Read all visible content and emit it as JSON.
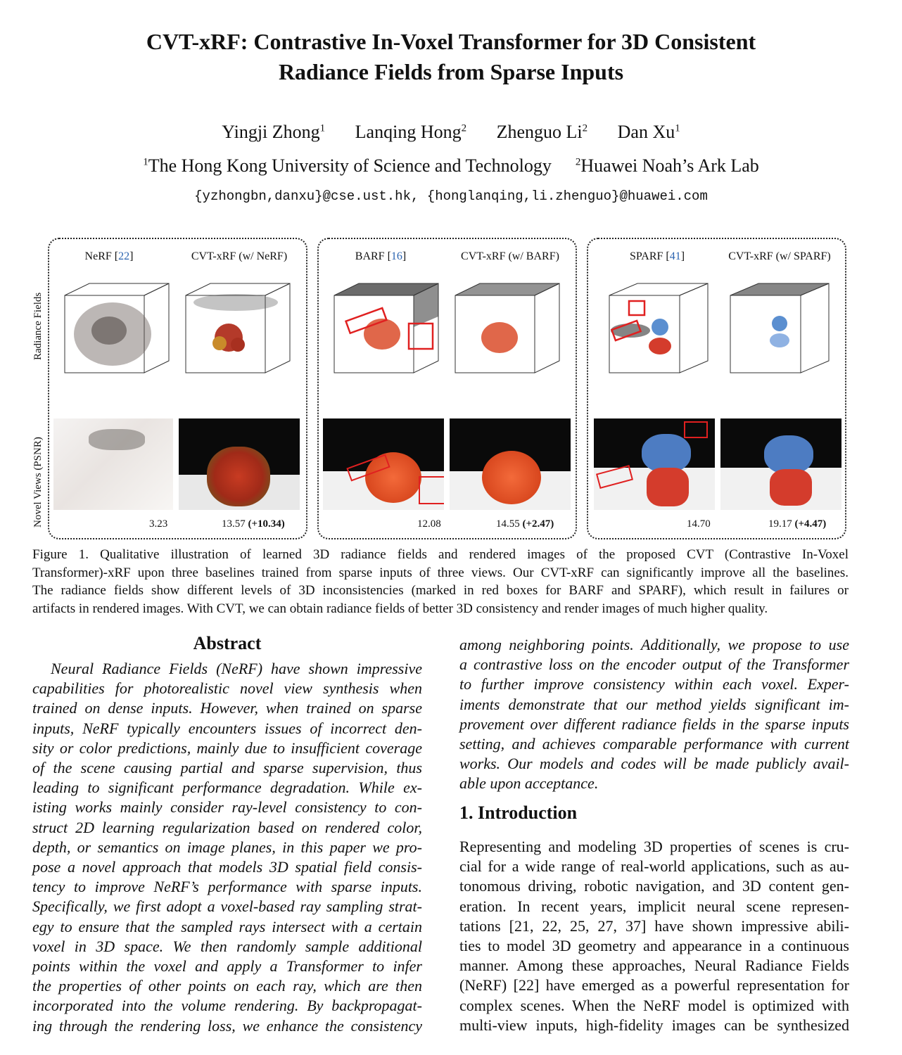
{
  "paper": {
    "title_line1": "CVT-xRF: Contrastive In-Voxel Transformer for 3D Consistent",
    "title_line2": "Radiance Fields from Sparse Inputs",
    "authors": [
      {
        "name": "Yingji Zhong",
        "aff": "1"
      },
      {
        "name": "Lanqing Hong",
        "aff": "2"
      },
      {
        "name": "Zhenguo Li",
        "aff": "2"
      },
      {
        "name": "Dan Xu",
        "aff": "1"
      }
    ],
    "affiliations": [
      {
        "num": "1",
        "name": "The Hong Kong University of Science and Technology"
      },
      {
        "num": "2",
        "name": "Huawei Noah’s Ark Lab"
      }
    ],
    "emails": "{yzhongbn,danxu}@cse.ust.hk, {honglanqing,li.zhenguo}@huawei.com"
  },
  "figure": {
    "row_labels": [
      "Radiance Fields",
      "Novel Views (PSNR)"
    ],
    "panels": [
      {
        "left_name": "NeRF",
        "left_ref": "22",
        "right_label": "CVT-xRF (w/ NeRF)",
        "left_score": "3.23",
        "right_score": "13.57",
        "gain": "(+10.34)"
      },
      {
        "left_name": "BARF",
        "left_ref": "16",
        "right_label": "CVT-xRF (w/ BARF)",
        "left_score": "12.08",
        "right_score": "14.55",
        "gain": "(+2.47)"
      },
      {
        "left_name": "SPARF",
        "left_ref": "41",
        "right_label": "CVT-xRF (w/ SPARF)",
        "left_score": "14.70",
        "right_score": "19.17",
        "gain": "(+4.47)"
      }
    ],
    "caption_lines": [
      "Figure 1.  Qualitative illustration of learned 3D radiance fields and rendered images of the proposed CVT (Contrastive In-Voxel",
      "Transformer)-xRF upon three baselines trained from sparse inputs of three views. Our CVT-xRF can significantly improve all the baselines.",
      "The radiance fields show different levels of 3D inconsistencies (marked in red boxes for BARF and SPARF), which result in failures or",
      "artifacts in rendered images. With CVT, we can obtain radiance fields of better 3D consistency and render images of much higher quality."
    ]
  },
  "abstract": {
    "heading": "Abstract",
    "left_lines": [
      "Neural Radiance Fields (NeRF) have shown impressive",
      "capabilities for photorealistic novel view synthesis when",
      "trained on dense inputs. However, when trained on sparse",
      "inputs, NeRF typically encounters issues of incorrect den-",
      "sity or color predictions, mainly due to insufficient coverage",
      "of the scene causing partial and sparse supervision, thus",
      "leading to significant performance degradation. While ex-",
      "isting works mainly consider ray-level consistency to con-",
      "struct 2D learning regularization based on rendered color,",
      "depth, or semantics on image planes, in this paper we pro-",
      "pose a novel approach that models 3D spatial field consis-",
      "tency to improve NeRF’s performance with sparse inputs.",
      "Specifically, we first adopt a voxel-based ray sampling strat-",
      "egy to ensure that the sampled rays intersect with a certain",
      "voxel in 3D space.  We then randomly sample additional",
      "points within the voxel and apply a Transformer to infer",
      "the properties of other points on each ray, which are then",
      "incorporated into the volume rendering. By backpropagat-",
      "ing through the rendering loss, we enhance the consistency"
    ],
    "right_lines": [
      "among neighboring points. Additionally, we propose to use",
      "a contrastive loss on the encoder output of the Transformer",
      "to further improve consistency within each voxel.  Exper-",
      "iments demonstrate that our method yields significant im-",
      "provement over different radiance fields in the sparse inputs",
      "setting, and achieves comparable performance with current",
      "works.  Our models and codes will be made publicly avail-",
      "able upon acceptance."
    ]
  },
  "intro": {
    "heading": "1. Introduction",
    "lines": [
      "Representing and modeling 3D properties of scenes is cru-",
      "cial for a wide range of real-world applications, such as au-",
      "tonomous driving, robotic navigation, and 3D content gen-",
      "eration.  In recent years, implicit neural scene represen-",
      "tations [21, 22, 25, 27, 37] have shown impressive abili-",
      "ties to model 3D geometry and appearance in a continuous",
      "manner. Among these approaches, Neural Radiance Fields",
      "(NeRF) [22] have emerged as a powerful representation for",
      "complex scenes.  When the NeRF model is optimized with",
      "multi-view inputs, high-fidelity images can be synthesized"
    ]
  }
}
